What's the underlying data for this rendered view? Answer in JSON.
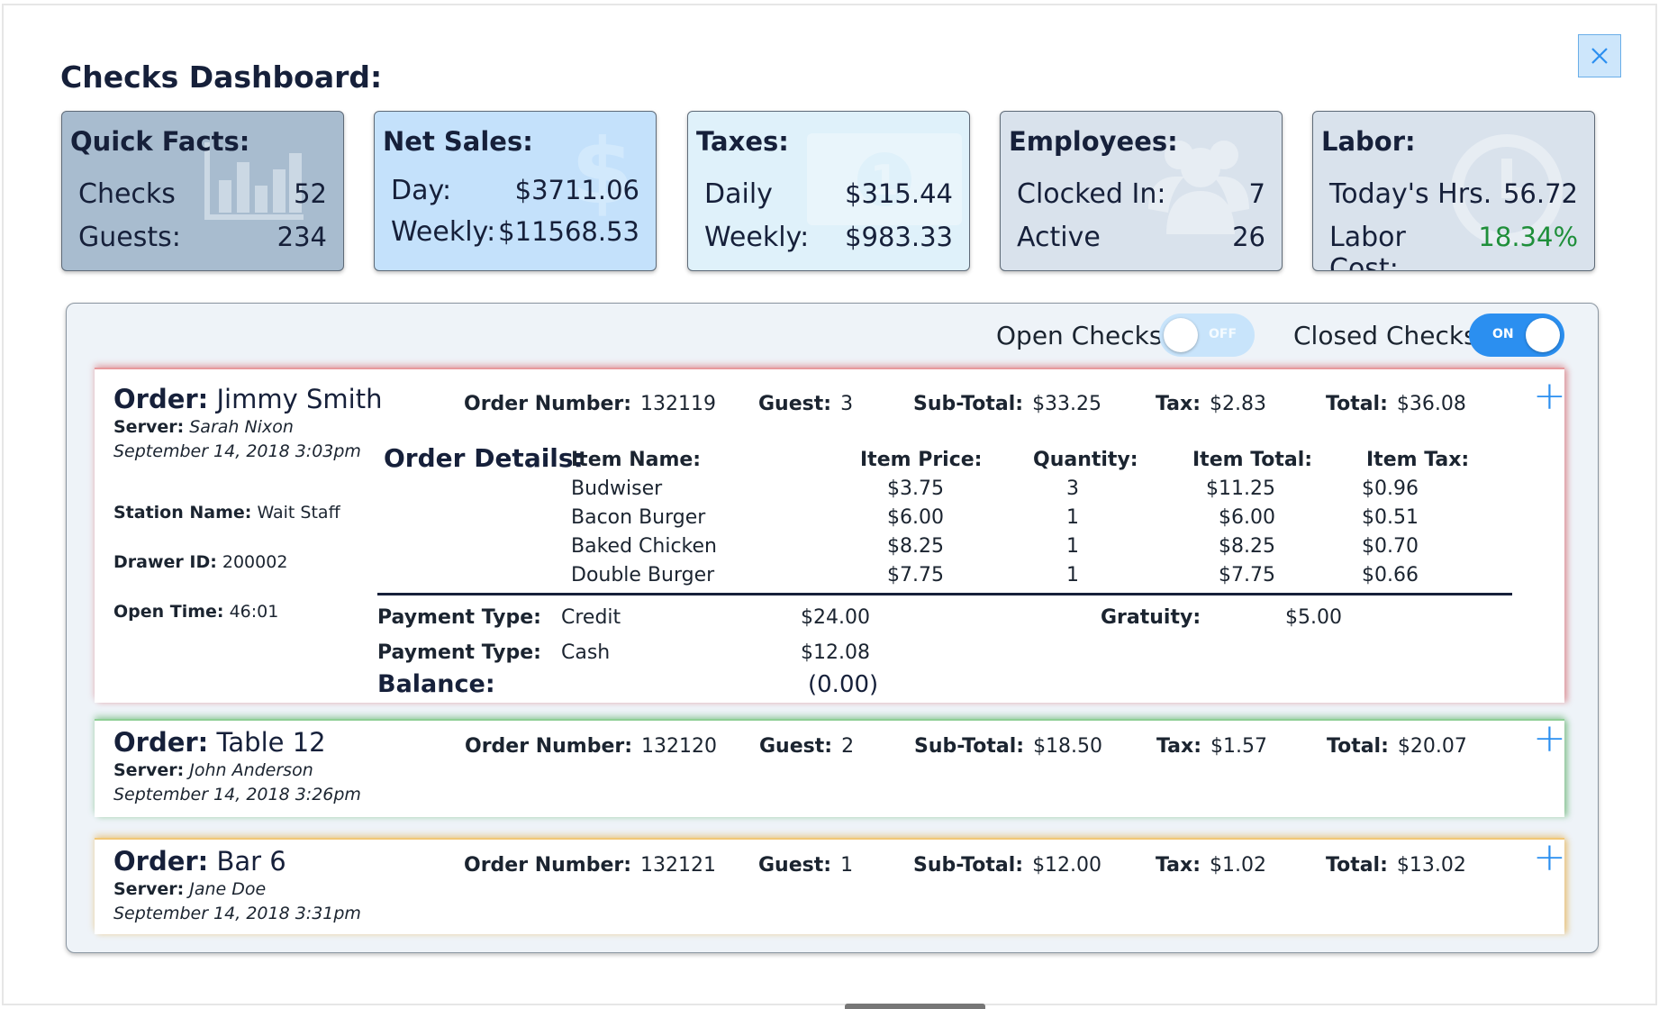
{
  "title": "Checks Dashboard:",
  "cards": {
    "quick_facts": {
      "title": "Quick Facts:",
      "rows": [
        {
          "label": "Checks",
          "value": "52"
        },
        {
          "label": "Guests:",
          "value": "234"
        }
      ]
    },
    "net_sales": {
      "title": "Net Sales:",
      "rows": [
        {
          "label": "Day:",
          "value": "$3711.06"
        },
        {
          "label": "Weekly:",
          "value": "$11568.53"
        }
      ]
    },
    "taxes": {
      "title": "Taxes:",
      "rows": [
        {
          "label": "Daily",
          "value": "$315.44"
        },
        {
          "label": "Weekly:",
          "value": "$983.33"
        }
      ]
    },
    "employees": {
      "title": "Employees:",
      "rows": [
        {
          "label": "Clocked In:",
          "value": "7"
        },
        {
          "label": "Active",
          "value": "26"
        }
      ]
    },
    "labor": {
      "title": "Labor:",
      "rows": [
        {
          "label": "Today's Hrs.",
          "value": "56.72"
        },
        {
          "label": "Labor Cost:",
          "value": "18.34%"
        }
      ]
    }
  },
  "toggles": {
    "open_checks": {
      "label": "Open Checks",
      "state": "OFF"
    },
    "closed_checks": {
      "label": "Closed Checks",
      "state": "ON"
    }
  },
  "labels": {
    "order": "Order:",
    "server": "Server:",
    "station_name": "Station Name:",
    "drawer_id": "Drawer ID:",
    "open_time": "Open Time:",
    "order_number": "Order Number:",
    "guest": "Guest:",
    "sub_total": "Sub-Total:",
    "tax": "Tax:",
    "total": "Total:",
    "order_details": "Order Details:",
    "payment_type": "Payment Type:",
    "gratuity": "Gratuity:",
    "balance": "Balance:",
    "expand": "+"
  },
  "orders": [
    {
      "name": "Jimmy Smith",
      "server": "Sarah Nixon",
      "datetime": "September 14, 2018 3:03pm",
      "station_name": "Wait Staff",
      "drawer_id": "200002",
      "open_time": "46:01",
      "order_number": "132119",
      "guest": "3",
      "sub_total": "$33.25",
      "tax": "$2.83",
      "total": "$36.08",
      "accent": "#d9646a",
      "items_header": [
        "Item Name:",
        "Item Price:",
        "Quantity:",
        "Item Total:",
        "Item Tax:"
      ],
      "items": [
        {
          "name": "Budwiser",
          "price": "$3.75",
          "qty": "3",
          "total": "$11.25",
          "tax": "$0.96"
        },
        {
          "name": "Bacon Burger",
          "price": "$6.00",
          "qty": "1",
          "total": "$6.00",
          "tax": "$0.51"
        },
        {
          "name": "Baked Chicken",
          "price": "$8.25",
          "qty": "1",
          "total": "$8.25",
          "tax": "$0.70"
        },
        {
          "name": "Double Burger",
          "price": "$7.75",
          "qty": "1",
          "total": "$7.75",
          "tax": "$0.66"
        }
      ],
      "payments": [
        {
          "type": "Credit",
          "amount": "$24.00"
        },
        {
          "type": "Cash",
          "amount": "$12.08"
        }
      ],
      "gratuity": "$5.00",
      "balance": "(0.00)"
    },
    {
      "name": "Table 12",
      "server": "John Anderson",
      "datetime": "September 14, 2018 3:26pm",
      "order_number": "132120",
      "guest": "2",
      "sub_total": "$18.50",
      "tax": "$1.57",
      "total": "$20.07",
      "accent": "#4fa85a"
    },
    {
      "name": "Bar 6",
      "server": "Jane Doe",
      "datetime": "September 14, 2018 3:31pm",
      "order_number": "132121",
      "guest": "1",
      "sub_total": "$12.00",
      "tax": "$1.02",
      "total": "$13.02",
      "accent": "#e6aa3c"
    }
  ],
  "colors": {
    "accent_blue": "#2b8ff0",
    "labor_cost_green": "#1f8f3a"
  }
}
